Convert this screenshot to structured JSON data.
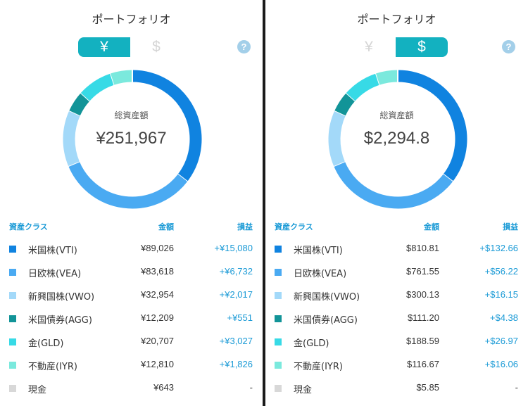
{
  "title": "ポートフォリオ",
  "currency_toggle": {
    "yen_label": "¥",
    "usd_label": "$"
  },
  "help_label": "?",
  "total_label": "総資産額",
  "table_headers": {
    "asset_class": "資産クラス",
    "amount": "金額",
    "profit_loss": "損益"
  },
  "colors": {
    "accent": "#13b1c0",
    "link_blue": "#1a9ad6",
    "VTI": "#1083e0",
    "VEA": "#4aaaf2",
    "VWO": "#a3d9f9",
    "AGG": "#129498",
    "GLD": "#37dae6",
    "IYR": "#7be9dd",
    "cash": "#d8d8d8"
  },
  "panels": [
    {
      "currency": "yen",
      "total": "¥251,967",
      "rows": [
        {
          "key": "VTI",
          "name": "米国株(VTI)",
          "amount": "¥89,026",
          "pl": "+¥15,080",
          "value": 89026,
          "color": "#1083e0"
        },
        {
          "key": "VEA",
          "name": "日欧株(VEA)",
          "amount": "¥83,618",
          "pl": "+¥6,732",
          "value": 83618,
          "color": "#4aaaf2"
        },
        {
          "key": "VWO",
          "name": "新興国株(VWO)",
          "amount": "¥32,954",
          "pl": "+¥2,017",
          "value": 32954,
          "color": "#a3d9f9"
        },
        {
          "key": "AGG",
          "name": "米国債券(AGG)",
          "amount": "¥12,209",
          "pl": "+¥551",
          "value": 12209,
          "color": "#129498"
        },
        {
          "key": "GLD",
          "name": "金(GLD)",
          "amount": "¥20,707",
          "pl": "+¥3,027",
          "value": 20707,
          "color": "#37dae6"
        },
        {
          "key": "IYR",
          "name": "不動産(IYR)",
          "amount": "¥12,810",
          "pl": "+¥1,826",
          "value": 12810,
          "color": "#7be9dd"
        },
        {
          "key": "cash",
          "name": "現金",
          "amount": "¥643",
          "pl": "-",
          "value": 643,
          "color": "#d8d8d8"
        }
      ]
    },
    {
      "currency": "usd",
      "total": "$2,294.8",
      "rows": [
        {
          "key": "VTI",
          "name": "米国株(VTI)",
          "amount": "$810.81",
          "pl": "+$132.66",
          "value": 810.81,
          "color": "#1083e0"
        },
        {
          "key": "VEA",
          "name": "日欧株(VEA)",
          "amount": "$761.55",
          "pl": "+$56.22",
          "value": 761.55,
          "color": "#4aaaf2"
        },
        {
          "key": "VWO",
          "name": "新興国株(VWO)",
          "amount": "$300.13",
          "pl": "+$16.15",
          "value": 300.13,
          "color": "#a3d9f9"
        },
        {
          "key": "AGG",
          "name": "米国債券(AGG)",
          "amount": "$111.20",
          "pl": "+$4.38",
          "value": 111.2,
          "color": "#129498"
        },
        {
          "key": "GLD",
          "name": "金(GLD)",
          "amount": "$188.59",
          "pl": "+$26.97",
          "value": 188.59,
          "color": "#37dae6"
        },
        {
          "key": "IYR",
          "name": "不動産(IYR)",
          "amount": "$116.67",
          "pl": "+$16.06",
          "value": 116.67,
          "color": "#7be9dd"
        },
        {
          "key": "cash",
          "name": "現金",
          "amount": "$5.85",
          "pl": "-",
          "value": 5.85,
          "color": "#d8d8d8"
        }
      ]
    }
  ]
}
